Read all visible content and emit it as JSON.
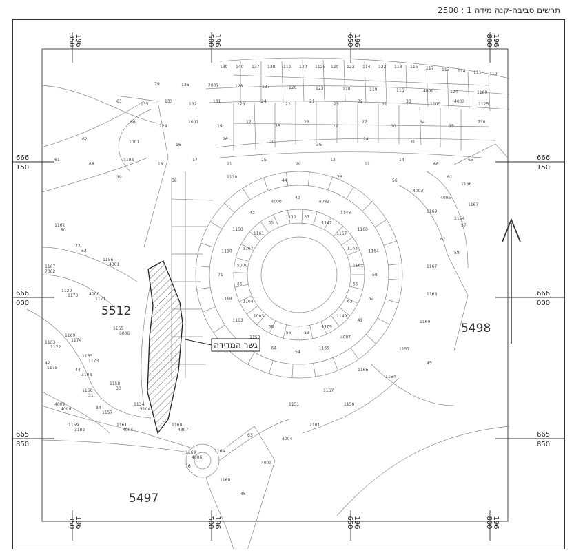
{
  "title": "תרשים סביבה-קנה מידה 1 : 2500",
  "blocks": [
    {
      "id": "block-5512",
      "label": "5512"
    },
    {
      "id": "block-5498",
      "label": "5498"
    },
    {
      "id": "block-5497",
      "label": "5497"
    }
  ],
  "highlight_label": "גשר המדידה",
  "grid": {
    "x_top": [
      [
        "350",
        "196"
      ],
      [
        "500",
        "196"
      ],
      [
        "650",
        "196"
      ],
      [
        "800",
        "196"
      ]
    ],
    "y_left": [
      [
        "666",
        "150"
      ],
      [
        "666",
        "000"
      ],
      [
        "665",
        "850"
      ]
    ],
    "y_right": [
      [
        "666",
        "150"
      ],
      [
        "666",
        "000"
      ],
      [
        "665",
        "850"
      ]
    ]
  },
  "north_arrow": {
    "icon": "north-arrow-icon"
  },
  "lots": [
    "139",
    "140",
    "137",
    "138",
    "112",
    "130",
    "1125",
    "129",
    "123",
    "114",
    "122",
    "118",
    "115",
    "117",
    "113",
    "114",
    "111",
    "110",
    "79",
    "136",
    "7007",
    "128",
    "127",
    "126",
    "123",
    "120",
    "119",
    "116",
    "4009",
    "124",
    "1189",
    "63",
    "135",
    "133",
    "132",
    "131",
    "126",
    "24",
    "22",
    "21",
    "23",
    "32",
    "31",
    "33",
    "1105",
    "4003",
    "1125",
    "66",
    "124",
    "1007",
    "19",
    "17",
    "36",
    "23",
    "22",
    "27",
    "30",
    "34",
    "35",
    "730",
    "62",
    "1001",
    "16",
    "26",
    "20",
    "36",
    "24",
    "31",
    "61",
    "68",
    "1103",
    "18",
    "17",
    "21",
    "25",
    "29",
    "13",
    "11",
    "14",
    "66",
    "65",
    "39",
    "38",
    "1130",
    "44",
    "73",
    "56",
    "61",
    "40",
    "37",
    "4082",
    "1147",
    "1148",
    "1157",
    "1160",
    "1163",
    "1164",
    "1161",
    "58",
    "55",
    "62",
    "63",
    "41",
    "1149",
    "4007",
    "1169",
    "1165",
    "53",
    "54",
    "56",
    "64",
    "36",
    "1150",
    "1003",
    "1163",
    "1164",
    "1168",
    "65",
    "71",
    "5000",
    "1110",
    "1167",
    "1160",
    "1161",
    "43",
    "35",
    "4000",
    "1111",
    "1162",
    "72",
    "1156",
    "1167",
    "1120",
    "4000",
    "1165",
    "1169",
    "1163",
    "1163",
    "42",
    "44",
    "1158",
    "1160",
    "4009",
    "34",
    "1134",
    "1159",
    "1161",
    "1160",
    "1169",
    "1164",
    "63",
    "4003",
    "1151",
    "1167",
    "1166",
    "1157",
    "1169",
    "1168",
    "1167",
    "61",
    "1154",
    "1169",
    "4003",
    "4006",
    "1166",
    "1167",
    "57",
    "58",
    "45",
    "1164",
    "1150",
    "2101",
    "4004",
    "1168",
    "46",
    "76",
    "80",
    "52",
    "4001",
    "7002",
    "1170",
    "1171",
    "6006",
    "1174",
    "1172",
    "1173",
    "1175",
    "3108",
    "30",
    "31",
    "4009",
    "1157",
    "3104",
    "3102",
    "4005",
    "4307",
    "4006"
  ]
}
